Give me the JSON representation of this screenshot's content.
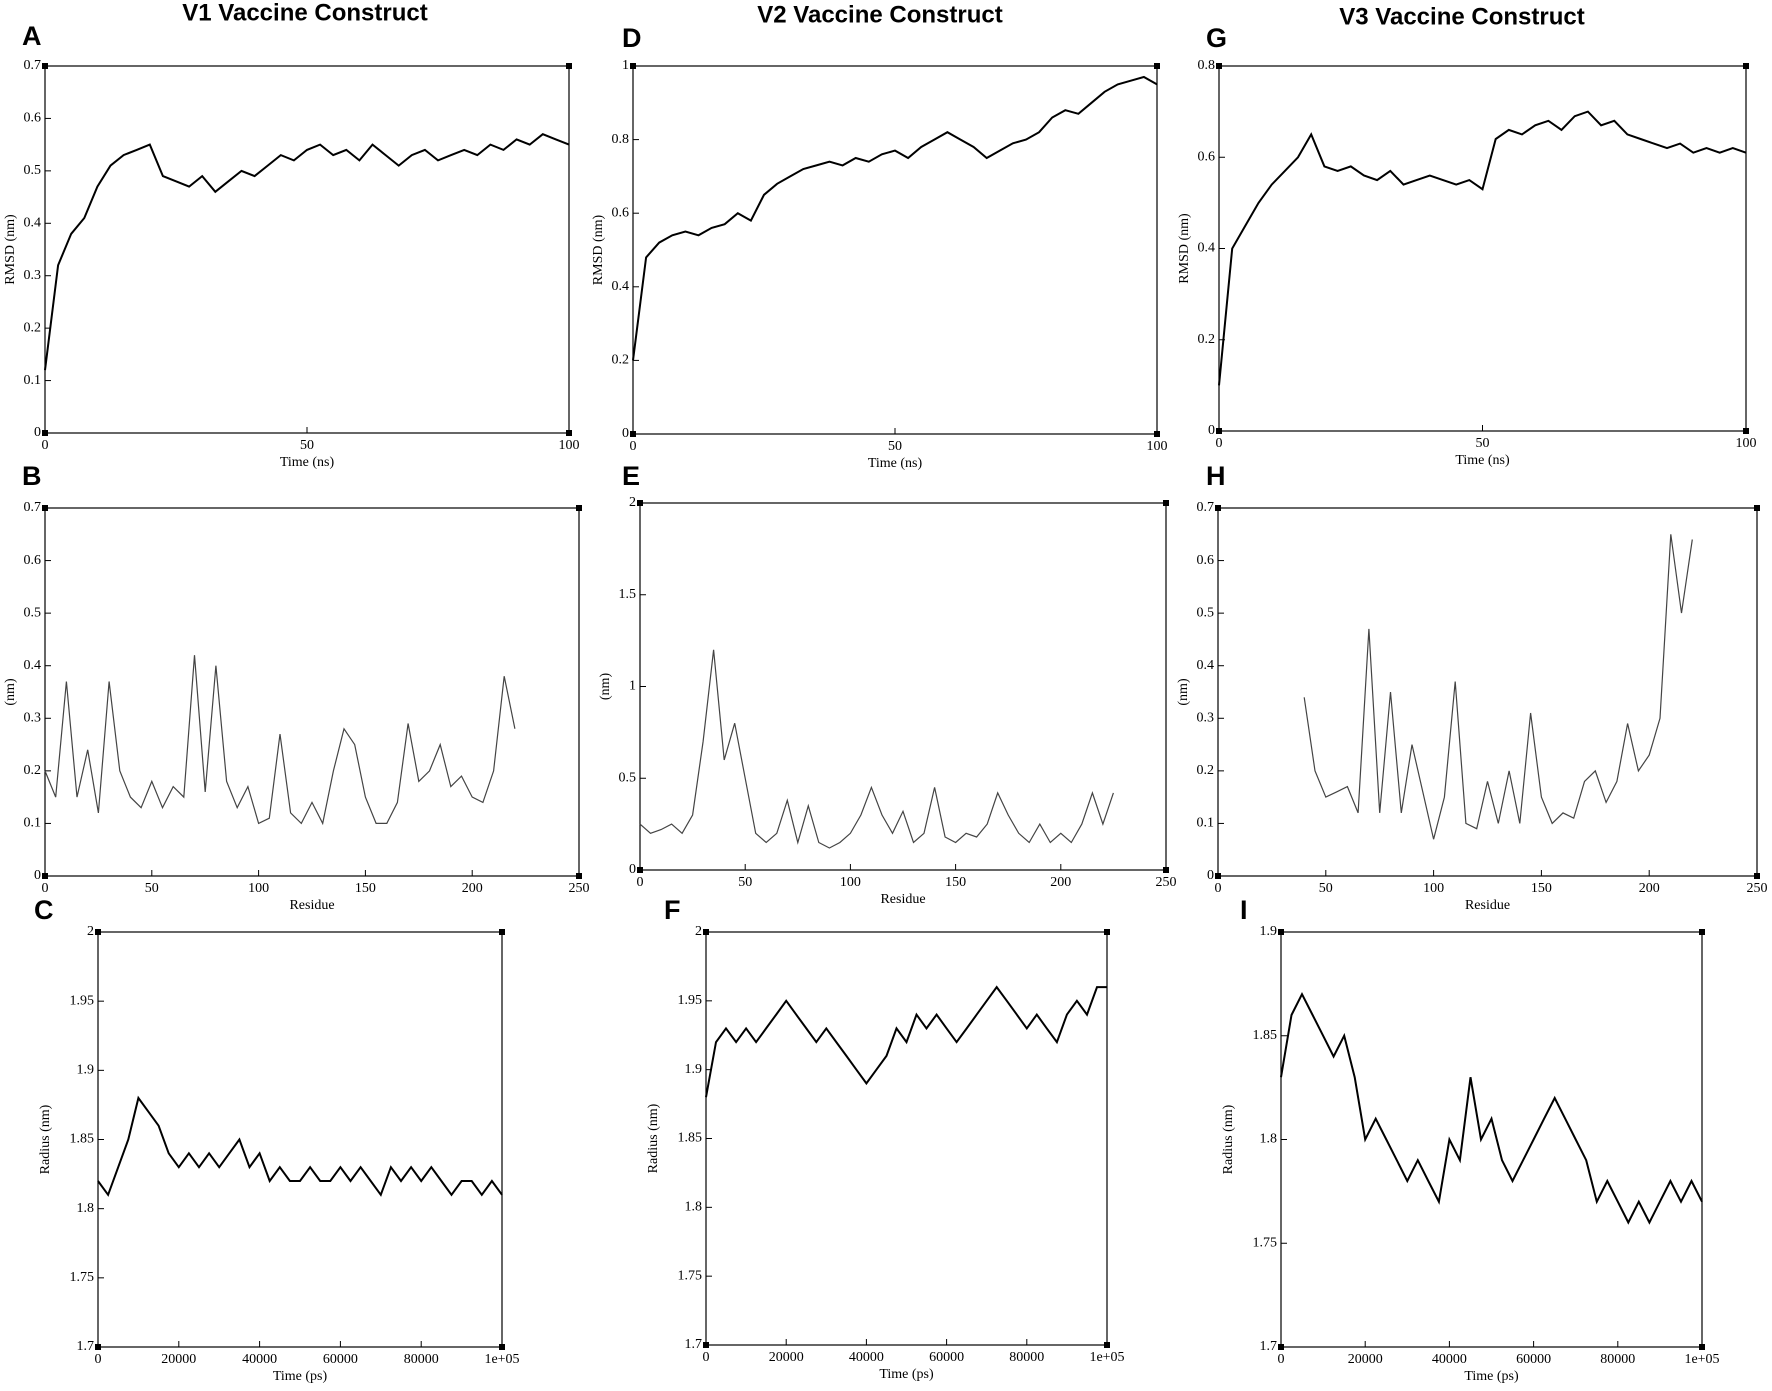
{
  "column_titles": [
    "V1 Vaccine Construct",
    "V2 Vaccine Construct",
    "V3 Vaccine Construct"
  ],
  "chart_data": [
    {
      "type": "line",
      "panel": "A",
      "xlabel": "Time (ns)",
      "ylabel": "RMSD (nm)",
      "color": "#000000",
      "x": [
        0,
        2.5,
        5,
        7.5,
        10,
        12.5,
        15,
        17.5,
        20,
        22.5,
        25,
        27.5,
        30,
        32.5,
        35,
        37.5,
        40,
        42.5,
        45,
        47.5,
        50,
        52.5,
        55,
        57.5,
        60,
        62.5,
        65,
        67.5,
        70,
        72.5,
        75,
        77.5,
        80,
        82.5,
        85,
        87.5,
        90,
        92.5,
        95,
        97.5,
        100
      ],
      "values": [
        0.12,
        0.32,
        0.38,
        0.41,
        0.47,
        0.51,
        0.53,
        0.54,
        0.55,
        0.49,
        0.48,
        0.47,
        0.49,
        0.46,
        0.48,
        0.5,
        0.49,
        0.51,
        0.53,
        0.52,
        0.54,
        0.55,
        0.53,
        0.54,
        0.52,
        0.55,
        0.53,
        0.51,
        0.53,
        0.54,
        0.52,
        0.53,
        0.54,
        0.53,
        0.55,
        0.54,
        0.56,
        0.55,
        0.57,
        0.56,
        0.55
      ],
      "xlim": [
        0,
        100
      ],
      "ylim": [
        0,
        0.7
      ],
      "xticks": [
        0,
        50,
        100
      ],
      "yticks": [
        0,
        0.1,
        0.2,
        0.3,
        0.4,
        0.5,
        0.6,
        0.7
      ]
    },
    {
      "type": "line",
      "panel": "B",
      "xlabel": "Residue",
      "ylabel": "(nm)",
      "color": "#444444",
      "x": [
        0,
        5,
        10,
        15,
        20,
        25,
        30,
        35,
        40,
        45,
        50,
        55,
        60,
        65,
        70,
        75,
        80,
        85,
        90,
        95,
        100,
        105,
        110,
        115,
        120,
        125,
        130,
        135,
        140,
        145,
        150,
        155,
        160,
        165,
        170,
        175,
        180,
        185,
        190,
        195,
        200,
        205,
        210,
        215,
        220
      ],
      "values": [
        0.2,
        0.15,
        0.37,
        0.15,
        0.24,
        0.12,
        0.37,
        0.2,
        0.15,
        0.13,
        0.18,
        0.13,
        0.17,
        0.15,
        0.42,
        0.16,
        0.4,
        0.18,
        0.13,
        0.17,
        0.1,
        0.11,
        0.27,
        0.12,
        0.1,
        0.14,
        0.1,
        0.2,
        0.28,
        0.25,
        0.15,
        0.1,
        0.1,
        0.14,
        0.29,
        0.18,
        0.2,
        0.25,
        0.17,
        0.19,
        0.15,
        0.14,
        0.2,
        0.38,
        0.28
      ],
      "xlim": [
        0,
        250
      ],
      "ylim": [
        0,
        0.7
      ],
      "xticks": [
        0,
        50,
        100,
        150,
        200,
        250
      ],
      "yticks": [
        0,
        0.1,
        0.2,
        0.3,
        0.4,
        0.5,
        0.6,
        0.7
      ]
    },
    {
      "type": "line",
      "panel": "C",
      "xlabel": "Time (ps)",
      "ylabel": "Radius (nm)",
      "color": "#000000",
      "x": [
        0,
        2500,
        5000,
        7500,
        10000,
        12500,
        15000,
        17500,
        20000,
        22500,
        25000,
        27500,
        30000,
        32500,
        35000,
        37500,
        40000,
        42500,
        45000,
        47500,
        50000,
        52500,
        55000,
        57500,
        60000,
        62500,
        65000,
        67500,
        70000,
        72500,
        75000,
        77500,
        80000,
        82500,
        85000,
        87500,
        90000,
        92500,
        95000,
        97500,
        100000
      ],
      "values": [
        1.82,
        1.81,
        1.83,
        1.85,
        1.88,
        1.87,
        1.86,
        1.84,
        1.83,
        1.84,
        1.83,
        1.84,
        1.83,
        1.84,
        1.85,
        1.83,
        1.84,
        1.82,
        1.83,
        1.82,
        1.82,
        1.83,
        1.82,
        1.82,
        1.83,
        1.82,
        1.83,
        1.82,
        1.81,
        1.83,
        1.82,
        1.83,
        1.82,
        1.83,
        1.82,
        1.81,
        1.82,
        1.82,
        1.81,
        1.82,
        1.81
      ],
      "xlim": [
        0,
        100000
      ],
      "ylim": [
        1.7,
        2
      ],
      "xticks": [
        0,
        20000,
        40000,
        60000,
        80000,
        {
          "value": 100000,
          "label": "1e+05"
        }
      ],
      "yticks": [
        1.7,
        1.75,
        1.8,
        1.85,
        1.9,
        1.95,
        2
      ]
    },
    {
      "type": "line",
      "panel": "D",
      "xlabel": "Time (ns)",
      "ylabel": "RMSD (nm)",
      "color": "#000000",
      "x": [
        0,
        2.5,
        5,
        7.5,
        10,
        12.5,
        15,
        17.5,
        20,
        22.5,
        25,
        27.5,
        30,
        32.5,
        35,
        37.5,
        40,
        42.5,
        45,
        47.5,
        50,
        52.5,
        55,
        57.5,
        60,
        62.5,
        65,
        67.5,
        70,
        72.5,
        75,
        77.5,
        80,
        82.5,
        85,
        87.5,
        90,
        92.5,
        95,
        97.5,
        100
      ],
      "values": [
        0.2,
        0.48,
        0.52,
        0.54,
        0.55,
        0.54,
        0.56,
        0.57,
        0.6,
        0.58,
        0.65,
        0.68,
        0.7,
        0.72,
        0.73,
        0.74,
        0.73,
        0.75,
        0.74,
        0.76,
        0.77,
        0.75,
        0.78,
        0.8,
        0.82,
        0.8,
        0.78,
        0.75,
        0.77,
        0.79,
        0.8,
        0.82,
        0.86,
        0.88,
        0.87,
        0.9,
        0.93,
        0.95,
        0.96,
        0.97,
        0.95
      ],
      "xlim": [
        0,
        100
      ],
      "ylim": [
        0,
        1
      ],
      "xticks": [
        0,
        50,
        100
      ],
      "yticks": [
        0,
        0.2,
        0.4,
        0.6,
        0.8,
        1
      ]
    },
    {
      "type": "line",
      "panel": "E",
      "xlabel": "Residue",
      "ylabel": "(nm)",
      "color": "#444444",
      "x": [
        0,
        5,
        10,
        15,
        20,
        25,
        30,
        35,
        40,
        45,
        50,
        55,
        60,
        65,
        70,
        75,
        80,
        85,
        90,
        95,
        100,
        105,
        110,
        115,
        120,
        125,
        130,
        135,
        140,
        145,
        150,
        155,
        160,
        165,
        170,
        175,
        180,
        185,
        190,
        195,
        200,
        205,
        210,
        215,
        220,
        225
      ],
      "values": [
        0.25,
        0.2,
        0.22,
        0.25,
        0.2,
        0.3,
        0.7,
        1.2,
        0.6,
        0.8,
        0.5,
        0.2,
        0.15,
        0.2,
        0.38,
        0.15,
        0.35,
        0.15,
        0.12,
        0.15,
        0.2,
        0.3,
        0.45,
        0.3,
        0.2,
        0.32,
        0.15,
        0.2,
        0.45,
        0.18,
        0.15,
        0.2,
        0.18,
        0.25,
        0.42,
        0.3,
        0.2,
        0.15,
        0.25,
        0.15,
        0.2,
        0.15,
        0.25,
        0.42,
        0.25,
        0.42
      ],
      "xlim": [
        0,
        250
      ],
      "ylim": [
        0,
        2
      ],
      "xticks": [
        0,
        50,
        100,
        150,
        200,
        250
      ],
      "yticks": [
        0,
        0.5,
        1,
        1.5,
        2
      ]
    },
    {
      "type": "line",
      "panel": "F",
      "xlabel": "Time (ps)",
      "ylabel": "Radius (nm)",
      "color": "#000000",
      "x": [
        0,
        2500,
        5000,
        7500,
        10000,
        12500,
        15000,
        17500,
        20000,
        22500,
        25000,
        27500,
        30000,
        32500,
        35000,
        37500,
        40000,
        42500,
        45000,
        47500,
        50000,
        52500,
        55000,
        57500,
        60000,
        62500,
        65000,
        67500,
        70000,
        72500,
        75000,
        77500,
        80000,
        82500,
        85000,
        87500,
        90000,
        92500,
        95000,
        97500,
        100000
      ],
      "values": [
        1.88,
        1.92,
        1.93,
        1.92,
        1.93,
        1.92,
        1.93,
        1.94,
        1.95,
        1.94,
        1.93,
        1.92,
        1.93,
        1.92,
        1.91,
        1.9,
        1.89,
        1.9,
        1.91,
        1.93,
        1.92,
        1.94,
        1.93,
        1.94,
        1.93,
        1.92,
        1.93,
        1.94,
        1.95,
        1.96,
        1.95,
        1.94,
        1.93,
        1.94,
        1.93,
        1.92,
        1.94,
        1.95,
        1.94,
        1.96,
        1.96
      ],
      "xlim": [
        0,
        100000
      ],
      "ylim": [
        1.7,
        2
      ],
      "xticks": [
        0,
        20000,
        40000,
        60000,
        80000,
        {
          "value": 100000,
          "label": "1e+05"
        }
      ],
      "yticks": [
        1.7,
        1.75,
        1.8,
        1.85,
        1.9,
        1.95,
        2
      ]
    },
    {
      "type": "line",
      "panel": "G",
      "xlabel": "Time (ns)",
      "ylabel": "RMSD (nm)",
      "color": "#000000",
      "x": [
        0,
        2.5,
        5,
        7.5,
        10,
        12.5,
        15,
        17.5,
        20,
        22.5,
        25,
        27.5,
        30,
        32.5,
        35,
        37.5,
        40,
        42.5,
        45,
        47.5,
        50,
        52.5,
        55,
        57.5,
        60,
        62.5,
        65,
        67.5,
        70,
        72.5,
        75,
        77.5,
        80,
        82.5,
        85,
        87.5,
        90,
        92.5,
        95,
        97.5,
        100
      ],
      "values": [
        0.1,
        0.4,
        0.45,
        0.5,
        0.54,
        0.57,
        0.6,
        0.65,
        0.58,
        0.57,
        0.58,
        0.56,
        0.55,
        0.57,
        0.54,
        0.55,
        0.56,
        0.55,
        0.54,
        0.55,
        0.53,
        0.64,
        0.66,
        0.65,
        0.67,
        0.68,
        0.66,
        0.69,
        0.7,
        0.67,
        0.68,
        0.65,
        0.64,
        0.63,
        0.62,
        0.63,
        0.61,
        0.62,
        0.61,
        0.62,
        0.61
      ],
      "xlim": [
        0,
        100
      ],
      "ylim": [
        0,
        0.8
      ],
      "xticks": [
        0,
        50,
        100
      ],
      "yticks": [
        0,
        0.2,
        0.4,
        0.6,
        0.8
      ]
    },
    {
      "type": "line",
      "panel": "H",
      "xlabel": "Residue",
      "ylabel": "(nm)",
      "color": "#444444",
      "x": [
        40,
        45,
        50,
        55,
        60,
        65,
        70,
        75,
        80,
        85,
        90,
        95,
        100,
        105,
        110,
        115,
        120,
        125,
        130,
        135,
        140,
        145,
        150,
        155,
        160,
        165,
        170,
        175,
        180,
        185,
        190,
        195,
        200,
        205,
        210,
        215,
        220
      ],
      "values": [
        0.34,
        0.2,
        0.15,
        0.16,
        0.17,
        0.12,
        0.47,
        0.12,
        0.35,
        0.12,
        0.25,
        0.16,
        0.07,
        0.15,
        0.37,
        0.1,
        0.09,
        0.18,
        0.1,
        0.2,
        0.1,
        0.31,
        0.15,
        0.1,
        0.12,
        0.11,
        0.18,
        0.2,
        0.14,
        0.18,
        0.29,
        0.2,
        0.23,
        0.3,
        0.65,
        0.5,
        0.64
      ],
      "xlim": [
        0,
        250
      ],
      "ylim": [
        0,
        0.7
      ],
      "xticks": [
        0,
        50,
        100,
        150,
        200,
        250
      ],
      "yticks": [
        0,
        0.1,
        0.2,
        0.3,
        0.4,
        0.5,
        0.6,
        0.7
      ]
    },
    {
      "type": "line",
      "panel": "I",
      "xlabel": "Time (ps)",
      "ylabel": "Radius (nm)",
      "color": "#000000",
      "x": [
        0,
        2500,
        5000,
        7500,
        10000,
        12500,
        15000,
        17500,
        20000,
        22500,
        25000,
        27500,
        30000,
        32500,
        35000,
        37500,
        40000,
        42500,
        45000,
        47500,
        50000,
        52500,
        55000,
        57500,
        60000,
        62500,
        65000,
        67500,
        70000,
        72500,
        75000,
        77500,
        80000,
        82500,
        85000,
        87500,
        90000,
        92500,
        95000,
        97500,
        100000
      ],
      "values": [
        1.83,
        1.86,
        1.87,
        1.86,
        1.85,
        1.84,
        1.85,
        1.83,
        1.8,
        1.81,
        1.8,
        1.79,
        1.78,
        1.79,
        1.78,
        1.77,
        1.8,
        1.79,
        1.83,
        1.8,
        1.81,
        1.79,
        1.78,
        1.79,
        1.8,
        1.81,
        1.82,
        1.81,
        1.8,
        1.79,
        1.77,
        1.78,
        1.77,
        1.76,
        1.77,
        1.76,
        1.77,
        1.78,
        1.77,
        1.78,
        1.77
      ],
      "xlim": [
        0,
        100000
      ],
      "ylim": [
        1.7,
        1.9
      ],
      "xticks": [
        0,
        20000,
        40000,
        60000,
        80000,
        {
          "value": 100000,
          "label": "1e+05"
        }
      ],
      "yticks": [
        1.7,
        1.75,
        1.8,
        1.85,
        1.9
      ]
    }
  ]
}
